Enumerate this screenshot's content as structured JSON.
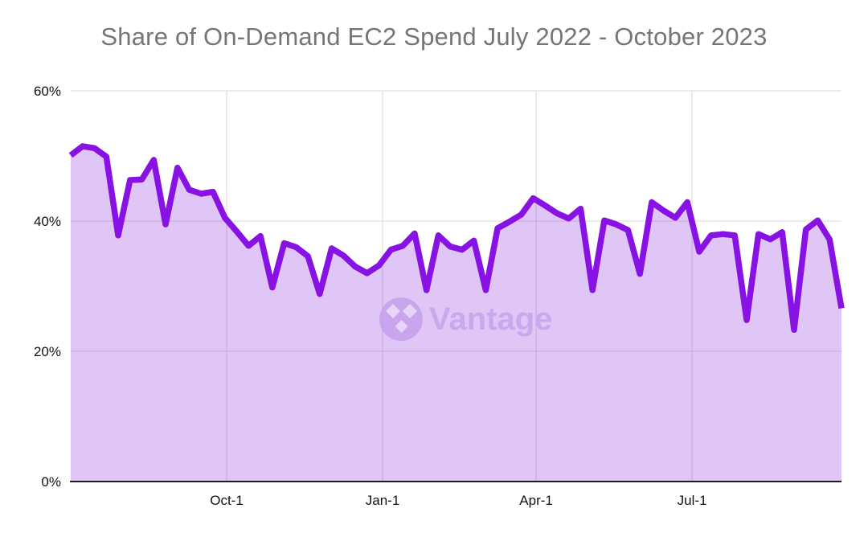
{
  "chart_data": {
    "type": "area",
    "title": "Share of On-Demand EC2 Spend July 2022 - October 2023",
    "series_name": "Share of On-Demand EC2 Spend",
    "x_unit": "week",
    "values": [
      50.1,
      51.5,
      51.2,
      49.9,
      37.8,
      46.3,
      46.4,
      49.4,
      39.5,
      48.2,
      44.8,
      44.2,
      44.5,
      40.5,
      38.4,
      36.2,
      37.7,
      29.8,
      36.6,
      36.0,
      34.6,
      28.8,
      35.8,
      34.7,
      33.0,
      32.0,
      33.2,
      35.6,
      36.2,
      38.1,
      29.4,
      37.8,
      36.1,
      35.6,
      37.0,
      29.4,
      38.9,
      39.9,
      41.0,
      43.5,
      42.4,
      41.2,
      40.4,
      41.9,
      29.4,
      40.1,
      39.5,
      38.6,
      31.9,
      42.9,
      41.6,
      40.5,
      42.9,
      35.3,
      37.8,
      38.0,
      37.8,
      24.8,
      38.0,
      37.2,
      38.3,
      23.3,
      38.7,
      40.1,
      37.2,
      26.6
    ],
    "ylim": [
      0,
      60
    ],
    "y_ticks": [
      {
        "label": "0%",
        "value": 0
      },
      {
        "label": "20%",
        "value": 20
      },
      {
        "label": "40%",
        "value": 40
      },
      {
        "label": "60%",
        "value": 60
      }
    ],
    "x_ticks": [
      {
        "label": "Oct-1",
        "index": 13.15
      },
      {
        "label": "Jan-1",
        "index": 26.3
      },
      {
        "label": "Apr-1",
        "index": 39.25
      },
      {
        "label": "Jul-1",
        "index": 52.4
      }
    ],
    "grid": true,
    "legend": "none",
    "watermark_text": "Vantage",
    "colors": {
      "line": "#8712e3",
      "fill": "rgba(140,40,225,0.27)",
      "grid": "#d9d9d9",
      "axis": "#1c1c1c",
      "title": "#757575",
      "tick_label": "#111111",
      "watermark_circle": "#c5a0ec",
      "watermark_diamond": "#e8d8f9",
      "watermark_text": "#c7a4ec"
    }
  }
}
